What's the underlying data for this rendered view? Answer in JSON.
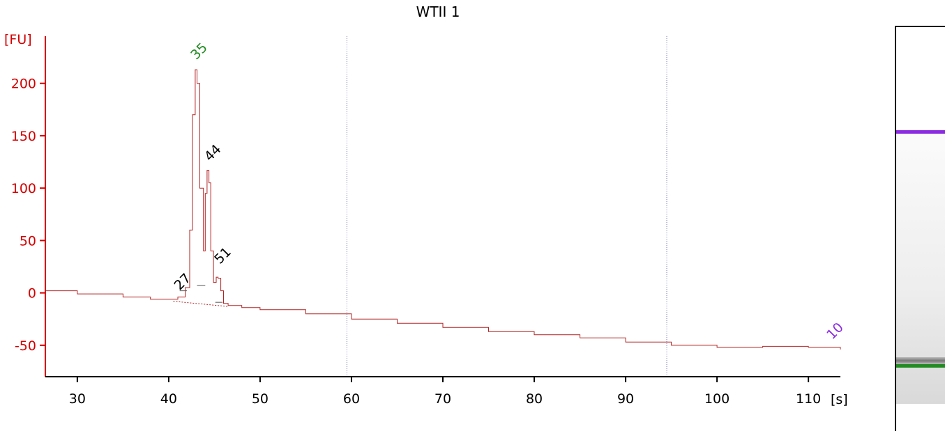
{
  "chart_data": {
    "type": "line",
    "title": "WTII 1",
    "ylabel": "[FU]",
    "xlabel": "[s]",
    "xlim": [
      26.5,
      113.5
    ],
    "ylim": [
      -80,
      245
    ],
    "xticks": [
      30,
      40,
      50,
      60,
      70,
      80,
      90,
      100,
      110
    ],
    "yticks": [
      -50,
      0,
      50,
      100,
      150,
      200
    ],
    "series": [
      {
        "color": "#b22222",
        "x": [
          26.5,
          30,
          35,
          38,
          40,
          41,
          41.8,
          42.3,
          42.6,
          42.9,
          43.1,
          43.4,
          43.8,
          44.0,
          44.2,
          44.4,
          44.6,
          44.9,
          45.2,
          45.4,
          45.7,
          46.0,
          46.5,
          48,
          50,
          55,
          60,
          65,
          70,
          75,
          80,
          85,
          90,
          95,
          100,
          105,
          110,
          113.5
        ],
        "y": [
          2,
          -1,
          -4,
          -6,
          -6,
          -4,
          5,
          60,
          170,
          213,
          200,
          100,
          40,
          95,
          117,
          105,
          40,
          10,
          15,
          14,
          2,
          -10,
          -12,
          -14,
          -16,
          -20,
          -25,
          -29,
          -33,
          -37,
          -40,
          -43,
          -47,
          -50,
          -52,
          -51,
          -52,
          -54
        ]
      }
    ],
    "vertical_lines": [
      59.5,
      94.5
    ],
    "peaks": [
      {
        "label": "27",
        "x": 41.2,
        "y": 2,
        "color": "#000000"
      },
      {
        "label": "35",
        "x": 43.0,
        "y": 222,
        "color": "#228b22"
      },
      {
        "label": "44",
        "x": 44.5,
        "y": 125,
        "color": "#000000"
      },
      {
        "label": "51",
        "x": 45.6,
        "y": 27,
        "color": "#000000"
      },
      {
        "label": "10",
        "x": 112.6,
        "y": -45,
        "color": "#8a2be2"
      }
    ]
  },
  "gel": {
    "upper_marker_color": "#8a2be2",
    "lower_marker_color": "#228b22"
  }
}
